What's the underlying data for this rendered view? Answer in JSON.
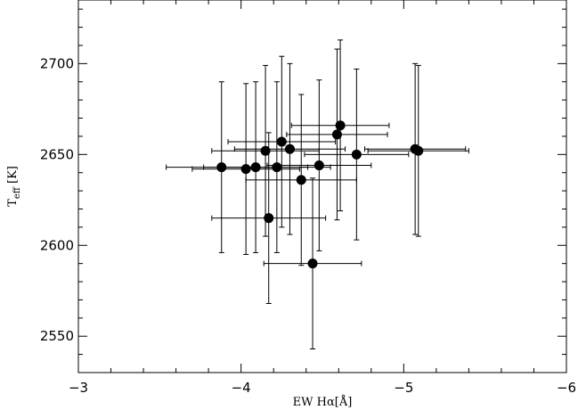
{
  "chart_data": {
    "type": "scatter",
    "title": "",
    "xlabel": "EW Hα[Å]",
    "ylabel_main": "T",
    "ylabel_sub": "eff",
    "ylabel_unit": " [K]",
    "xlim": [
      -3,
      -6
    ],
    "ylim": [
      2530,
      2735
    ],
    "xticks": [
      -3,
      -4,
      -5,
      -6
    ],
    "xtick_labels": [
      "−3",
      "−4",
      "−5",
      "−6"
    ],
    "yticks": [
      2550,
      2600,
      2650,
      2700
    ],
    "ytick_labels": [
      "2550",
      "2600",
      "2650",
      "2700"
    ],
    "grid": false,
    "points": [
      {
        "x": -3.88,
        "y": 2643,
        "xerr": 0.34,
        "yerr": 47
      },
      {
        "x": -4.03,
        "y": 2642,
        "xerr": 0.33,
        "yerr": 47
      },
      {
        "x": -4.09,
        "y": 2643,
        "xerr": 0.32,
        "yerr": 47
      },
      {
        "x": -4.15,
        "y": 2652,
        "xerr": 0.33,
        "yerr": 47
      },
      {
        "x": -4.17,
        "y": 2615,
        "xerr": 0.35,
        "yerr": 47
      },
      {
        "x": -4.22,
        "y": 2643,
        "xerr": 0.33,
        "yerr": 47
      },
      {
        "x": -4.25,
        "y": 2657,
        "xerr": 0.33,
        "yerr": 47
      },
      {
        "x": -4.3,
        "y": 2653,
        "xerr": 0.34,
        "yerr": 47
      },
      {
        "x": -4.37,
        "y": 2636,
        "xerr": 0.34,
        "yerr": 47
      },
      {
        "x": -4.44,
        "y": 2590,
        "xerr": 0.3,
        "yerr": 47
      },
      {
        "x": -4.48,
        "y": 2644,
        "xerr": 0.32,
        "yerr": 47
      },
      {
        "x": -4.59,
        "y": 2661,
        "xerr": 0.31,
        "yerr": 47
      },
      {
        "x": -4.61,
        "y": 2666,
        "xerr": 0.3,
        "yerr": 47
      },
      {
        "x": -4.71,
        "y": 2650,
        "xerr": 0.32,
        "yerr": 47
      },
      {
        "x": -5.07,
        "y": 2653,
        "xerr": 0.31,
        "yerr": 47
      },
      {
        "x": -5.09,
        "y": 2652,
        "xerr": 0.31,
        "yerr": 47
      }
    ]
  }
}
